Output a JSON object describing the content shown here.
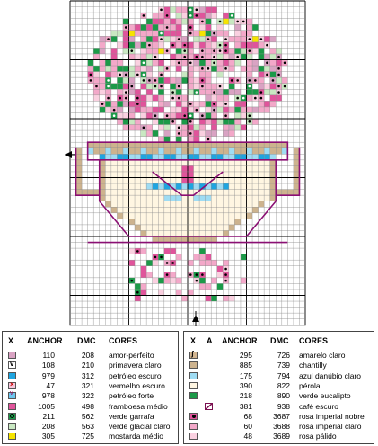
{
  "legend_left": {
    "headers": {
      "x": "X",
      "anchor": "ANCHOR",
      "dmc": "DMC",
      "cores": "CORES"
    },
    "rows": [
      {
        "symbol": "solid",
        "color": "#d9a3c3",
        "anchor": "110",
        "dmc": "208",
        "name": "amor-perfeito"
      },
      {
        "symbol": "v",
        "color": "#ffffff",
        "anchor": "108",
        "dmc": "210",
        "name": "primavera claro"
      },
      {
        "symbol": "solid",
        "color": "#1fa5e0",
        "anchor": "979",
        "dmc": "312",
        "name": "petróleo escuro"
      },
      {
        "symbol": "x",
        "color": "#f4c8dc",
        "anchor": "47",
        "dmc": "321",
        "name": "vermelho escuro"
      },
      {
        "symbol": "heart",
        "color": "#6fc6ee",
        "anchor": "978",
        "dmc": "322",
        "name": "petróleo forte"
      },
      {
        "symbol": "solid",
        "color": "#e0549b",
        "anchor": "1005",
        "dmc": "498",
        "name": "framboesa médio"
      },
      {
        "symbol": "ring",
        "color": "#1b9a48",
        "anchor": "211",
        "dmc": "562",
        "name": "verde garrafa"
      },
      {
        "symbol": "solid",
        "color": "#c9e8c2",
        "anchor": "208",
        "dmc": "563",
        "name": "verde glacial claro"
      },
      {
        "symbol": "solid",
        "color": "#f6e400",
        "anchor": "305",
        "dmc": "725",
        "name": "mostarda médio"
      }
    ]
  },
  "legend_right": {
    "headers": {
      "x": "X",
      "a": "A",
      "anchor": "ANCHOR",
      "dmc": "DMC",
      "cores": "CORES"
    },
    "rows": [
      {
        "symbol": "s",
        "color": "#d2b590",
        "anchor": "295",
        "dmc": "726",
        "name": "amarelo claro",
        "stitch": ""
      },
      {
        "symbol": "solid",
        "color": "#cdb38e",
        "anchor": "885",
        "dmc": "739",
        "name": "chantilly",
        "stitch": ""
      },
      {
        "symbol": "solid",
        "color": "#9fdcf3",
        "anchor": "175",
        "dmc": "794",
        "name": "azul danúbio claro",
        "stitch": ""
      },
      {
        "symbol": "solid",
        "color": "#fff6e2",
        "anchor": "390",
        "dmc": "822",
        "name": "pérola",
        "stitch": ""
      },
      {
        "symbol": "solid",
        "color": "#1b9a48",
        "anchor": "218",
        "dmc": "890",
        "name": "verde eucalipto",
        "stitch": ""
      },
      {
        "symbol": "none",
        "color": "#ffffff",
        "anchor": "381",
        "dmc": "938",
        "name": "café escuro",
        "stitch": "slash"
      },
      {
        "symbol": "dot",
        "color": "#e0549b",
        "anchor": "68",
        "dmc": "3687",
        "name": "rosa imperial nobre",
        "stitch": ""
      },
      {
        "symbol": "solid",
        "color": "#f3a8c9",
        "anchor": "60",
        "dmc": "3688",
        "name": "rosa imperial claro",
        "stitch": ""
      },
      {
        "symbol": "solid",
        "color": "#fad0e0",
        "anchor": "48",
        "dmc": "3689",
        "name": "rosa pálido",
        "stitch": ""
      }
    ]
  }
}
